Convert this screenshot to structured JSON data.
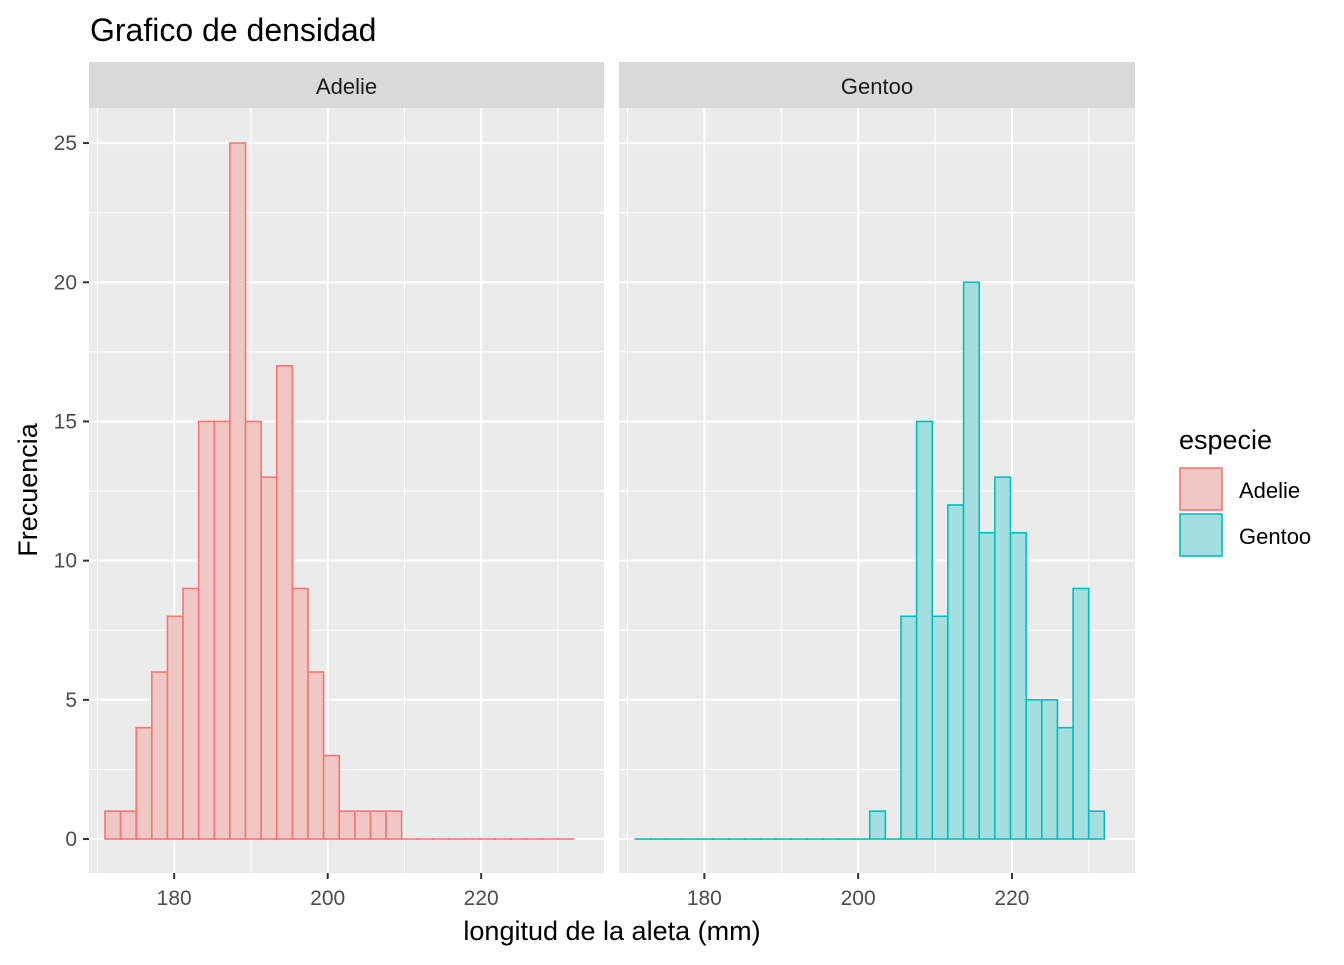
{
  "chart_data": {
    "type": "bar",
    "title": "Grafico de densidad",
    "xlabel": "longitud de la aleta (mm)",
    "ylabel": "Frecuencia",
    "xlim": [
      168.9,
      236.0
    ],
    "ylim": [
      -1.22,
      26.26
    ],
    "x_ticks": [
      180,
      200,
      220
    ],
    "y_ticks": [
      0,
      5,
      10,
      15,
      20,
      25
    ],
    "grid": true,
    "bins": {
      "min": 172,
      "max": 231,
      "count": 30
    },
    "legend": {
      "title": "especie",
      "position": "right",
      "entries": [
        "Adelie",
        "Gentoo"
      ]
    },
    "colors": {
      "Adelie": "#F8766D",
      "Gentoo": "#00BFC4"
    },
    "facets": [
      {
        "label": "Adelie",
        "series": "Adelie",
        "counts": [
          1,
          1,
          4,
          6,
          8,
          9,
          15,
          15,
          25,
          15,
          13,
          17,
          9,
          6,
          3,
          1,
          1,
          1,
          1,
          0,
          0,
          0,
          0,
          0,
          0,
          0,
          0,
          0,
          0,
          0
        ]
      },
      {
        "label": "Gentoo",
        "series": "Gentoo",
        "counts": [
          0,
          0,
          0,
          0,
          0,
          0,
          0,
          0,
          0,
          0,
          0,
          0,
          0,
          0,
          0,
          1,
          0,
          8,
          15,
          8,
          12,
          20,
          11,
          13,
          11,
          5,
          5,
          4,
          9,
          1
        ]
      }
    ]
  }
}
